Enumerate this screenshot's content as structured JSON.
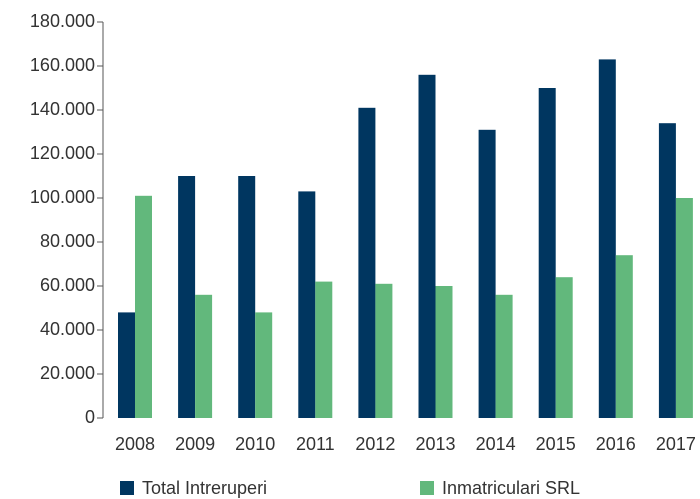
{
  "chart_data": {
    "type": "bar",
    "categories": [
      "2008",
      "2009",
      "2010",
      "2011",
      "2012",
      "2013",
      "2014",
      "2015",
      "2016",
      "2017"
    ],
    "series": [
      {
        "name": "Total Intreruperi",
        "color": "#003660",
        "values": [
          48000,
          110000,
          110000,
          103000,
          141000,
          156000,
          131000,
          150000,
          163000,
          134000
        ]
      },
      {
        "name": "Inmatriculari SRL",
        "color": "#62b87c",
        "values": [
          101000,
          56000,
          48000,
          62000,
          61000,
          60000,
          56000,
          64000,
          74000,
          100000
        ]
      }
    ],
    "ylim": [
      0,
      180000
    ],
    "yticks": [
      0,
      {
        "value": 20000,
        "label": "20.000"
      },
      {
        "value": 40000,
        "label": "40.000"
      },
      {
        "value": 60000,
        "label": "60.000"
      },
      {
        "value": 80000,
        "label": "80.000"
      },
      {
        "value": 100000,
        "label": "100.000"
      },
      {
        "value": 120000,
        "label": "120.000"
      },
      {
        "value": 140000,
        "label": "140.000"
      },
      {
        "value": 160000,
        "label": "160.000"
      },
      {
        "value": 180000,
        "label": "180.000"
      }
    ],
    "legend": "bottom"
  }
}
